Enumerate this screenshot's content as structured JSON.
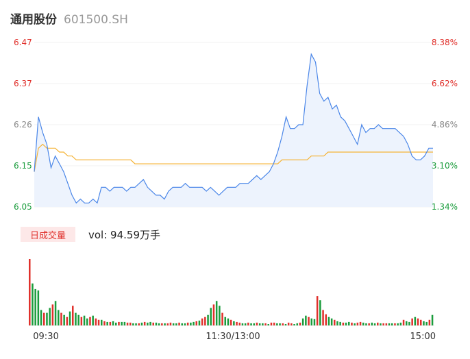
{
  "header": {
    "name": "通用股份",
    "code": "601500.SH"
  },
  "volume_panel": {
    "tag": "日成交量",
    "label": "vol: 94.59万手"
  },
  "colors": {
    "up": "#e0302b",
    "down": "#1a9c3c",
    "neutral": "#888888",
    "price_line": "#4a86e8",
    "avg_line": "#f5b335",
    "area_fill": "#edf3fd"
  },
  "chart_data": [
    {
      "type": "line",
      "yticks_left": [
        "6.47",
        "6.37",
        "6.26",
        "6.15",
        "6.05"
      ],
      "yticks_right": [
        "8.38%",
        "6.62%",
        "4.86%",
        "3.10%",
        "1.34%"
      ],
      "ylim": [
        6.05,
        6.47
      ],
      "series": [
        {
          "values": [
            6.14,
            6.28,
            6.24,
            6.21,
            6.15,
            6.18,
            6.16,
            6.14,
            6.11,
            6.08,
            6.06,
            6.07,
            6.06,
            6.06,
            6.07,
            6.06,
            6.1,
            6.1,
            6.09,
            6.1,
            6.1,
            6.1,
            6.09,
            6.1,
            6.1,
            6.11,
            6.12,
            6.1,
            6.09,
            6.08,
            6.08,
            6.07,
            6.09,
            6.1,
            6.1,
            6.1,
            6.11,
            6.1,
            6.1,
            6.1,
            6.1,
            6.09,
            6.1,
            6.09,
            6.08,
            6.09,
            6.1,
            6.1,
            6.1,
            6.11,
            6.11,
            6.11,
            6.12,
            6.13,
            6.12,
            6.13,
            6.14,
            6.16,
            6.19,
            6.23,
            6.28,
            6.25,
            6.25,
            6.26,
            6.26,
            6.36,
            6.44,
            6.42,
            6.34,
            6.32,
            6.33,
            6.3,
            6.31,
            6.28,
            6.27,
            6.25,
            6.23,
            6.21,
            6.26,
            6.24,
            6.25,
            6.25,
            6.26,
            6.25,
            6.25,
            6.25,
            6.25,
            6.24,
            6.23,
            6.21,
            6.18,
            6.17,
            6.17,
            6.18,
            6.2,
            6.2
          ]
        },
        {
          "values": [
            6.14,
            6.2,
            6.21,
            6.2,
            6.2,
            6.2,
            6.19,
            6.19,
            6.18,
            6.18,
            6.17,
            6.17,
            6.17,
            6.17,
            6.17,
            6.17,
            6.17,
            6.17,
            6.17,
            6.17,
            6.17,
            6.17,
            6.17,
            6.17,
            6.16,
            6.16,
            6.16,
            6.16,
            6.16,
            6.16,
            6.16,
            6.16,
            6.16,
            6.16,
            6.16,
            6.16,
            6.16,
            6.16,
            6.16,
            6.16,
            6.16,
            6.16,
            6.16,
            6.16,
            6.16,
            6.16,
            6.16,
            6.16,
            6.16,
            6.16,
            6.16,
            6.16,
            6.16,
            6.16,
            6.16,
            6.16,
            6.16,
            6.16,
            6.16,
            6.17,
            6.17,
            6.17,
            6.17,
            6.17,
            6.17,
            6.17,
            6.18,
            6.18,
            6.18,
            6.18,
            6.19,
            6.19,
            6.19,
            6.19,
            6.19,
            6.19,
            6.19,
            6.19,
            6.19,
            6.19,
            6.19,
            6.19,
            6.19,
            6.19,
            6.19,
            6.19,
            6.19,
            6.19,
            6.19,
            6.19,
            6.19,
            6.19,
            6.19,
            6.19,
            6.19,
            6.19
          ]
        }
      ]
    },
    {
      "type": "bar",
      "x_ticks": [
        "09:30",
        "11:30/13:00",
        "15:00"
      ],
      "values": [
        95,
        60,
        52,
        50,
        22,
        18,
        18,
        25,
        30,
        35,
        22,
        18,
        15,
        12,
        20,
        28,
        18,
        15,
        12,
        14,
        10,
        12,
        14,
        10,
        8,
        8,
        6,
        5,
        5,
        6,
        4,
        5,
        5,
        5,
        4,
        4,
        3,
        3,
        3,
        4,
        5,
        4,
        5,
        4,
        4,
        3,
        3,
        3,
        3,
        4,
        3,
        3,
        4,
        3,
        3,
        4,
        4,
        5,
        6,
        7,
        10,
        12,
        15,
        25,
        30,
        35,
        28,
        18,
        12,
        10,
        8,
        6,
        5,
        4,
        3,
        3,
        4,
        3,
        3,
        4,
        3,
        3,
        3,
        2,
        4,
        4,
        3,
        3,
        3,
        2,
        4,
        3,
        2,
        3,
        4,
        10,
        14,
        12,
        10,
        9,
        42,
        36,
        22,
        16,
        12,
        10,
        8,
        6,
        5,
        4,
        4,
        5,
        4,
        3,
        4,
        5,
        4,
        3,
        3,
        4,
        3,
        4,
        3,
        3,
        3,
        3,
        3,
        3,
        3,
        4,
        8,
        6,
        5,
        10,
        12,
        10,
        8,
        6,
        5,
        8,
        15
      ],
      "directions": "uddddudduddudududdudduduudududdudduuddududdudduduudduddudduduudduddudduduudduddudduduudduduudduddudduduudduddudduduuddudduduudduddudduduuddu"
    }
  ]
}
